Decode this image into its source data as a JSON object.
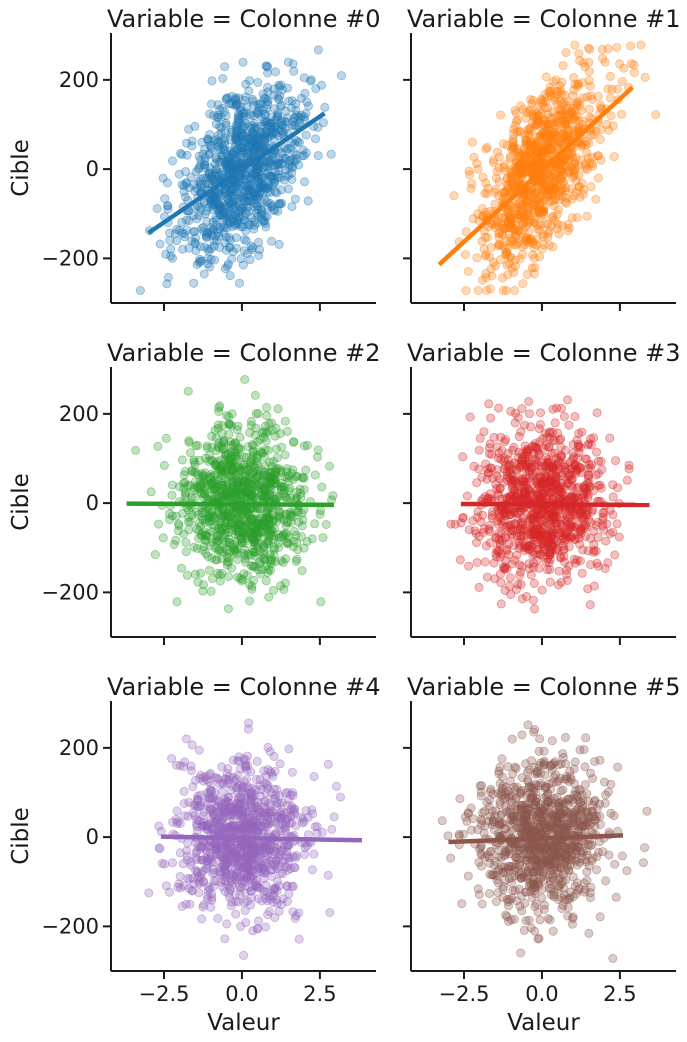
{
  "figure": {
    "xlabel": "Valeur",
    "ylabel": "Cible",
    "xticks": [
      -2.5,
      0.0,
      2.5
    ],
    "xtick_labels": [
      "−2.5",
      "0.0",
      "2.5"
    ],
    "yticks": [
      200,
      0,
      -200
    ],
    "ytick_labels": [
      "200",
      "0",
      "−200"
    ],
    "xlim": [
      -4.2,
      4.3
    ],
    "ylim": [
      -300,
      305
    ]
  },
  "chart_data": [
    {
      "type": "scatter",
      "title": "Variable = Colonne #0",
      "color": "#1f77b4",
      "slope": 48,
      "x_sd": 1.0,
      "y_sd": 85,
      "y_range": [
        -272,
        278
      ],
      "regression": {
        "x_start": -3.0,
        "x_end": 2.65,
        "y_start": -143,
        "y_end": 125
      }
    },
    {
      "type": "scatter",
      "title": "Variable = Colonne #1",
      "color": "#ff7f0e",
      "slope": 63,
      "x_sd": 1.0,
      "y_sd": 85,
      "y_range": [
        -272,
        278
      ],
      "regression": {
        "x_start": -3.3,
        "x_end": 2.9,
        "y_start": -214,
        "y_end": 183
      }
    },
    {
      "type": "scatter",
      "title": "Variable = Colonne #2",
      "color": "#2ca02c",
      "slope": -1,
      "x_sd": 1.0,
      "y_sd": 85,
      "y_range": [
        -272,
        278
      ],
      "regression": {
        "x_start": -3.7,
        "x_end": 2.95,
        "y_start": -1,
        "y_end": -4
      }
    },
    {
      "type": "scatter",
      "title": "Variable = Colonne #3",
      "color": "#d62728",
      "slope": -1,
      "x_sd": 1.0,
      "y_sd": 85,
      "y_range": [
        -272,
        278
      ],
      "regression": {
        "x_start": -2.6,
        "x_end": 3.45,
        "y_start": -2,
        "y_end": -4
      }
    },
    {
      "type": "scatter",
      "title": "Variable = Colonne #4",
      "color": "#9467bd",
      "slope": -1.3,
      "x_sd": 1.0,
      "y_sd": 85,
      "y_range": [
        -272,
        278
      ],
      "regression": {
        "x_start": -2.6,
        "x_end": 3.85,
        "y_start": 1,
        "y_end": -7
      }
    },
    {
      "type": "scatter",
      "title": "Variable = Colonne #5",
      "color": "#8c564b",
      "slope": 2.5,
      "x_sd": 1.0,
      "y_sd": 85,
      "y_range": [
        -272,
        278
      ],
      "regression": {
        "x_start": -3.0,
        "x_end": 2.6,
        "y_start": -11,
        "y_end": 4
      }
    }
  ]
}
